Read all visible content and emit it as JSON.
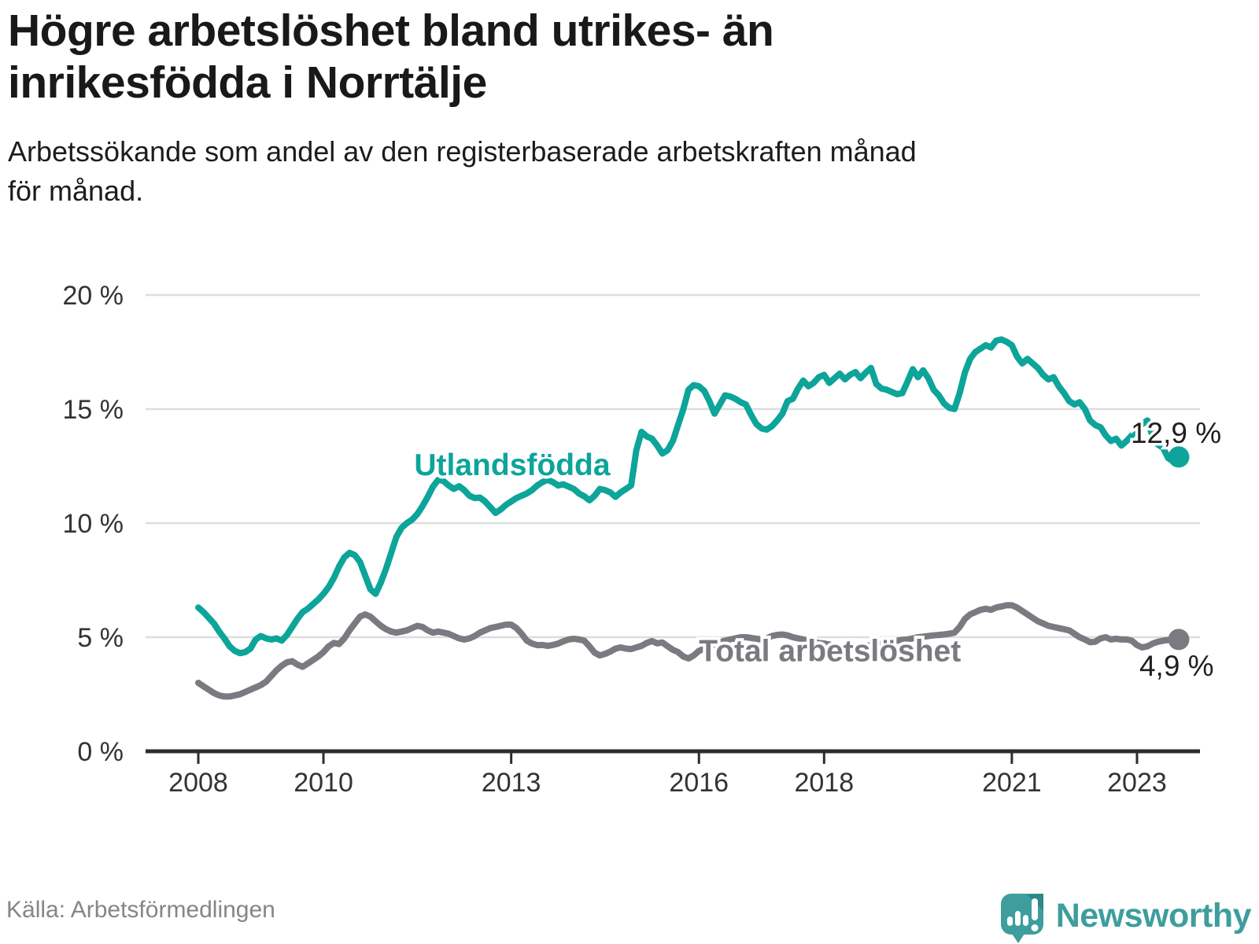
{
  "header": {
    "title_line1": "Högre arbetslöshet bland utrikes- än",
    "title_line2": "inrikesfödda i Norrtälje",
    "subtitle_line1": "Arbetssökande som andel av den registerbaserade arbetskraften månad",
    "subtitle_line2": "för månad."
  },
  "footer": {
    "source": "Källa: Arbetsförmedlingen",
    "brand": "Newsworthy"
  },
  "colors": {
    "foreign_born": "#0da49a",
    "total": "#7a7a80",
    "grid": "#dedede",
    "axis": "#2d2d2d",
    "tick_text": "#333333",
    "end_label_text": "#1f1f1f",
    "brand_teal": "#3e9d9d"
  },
  "chart_data": {
    "type": "line",
    "title": "Högre arbetslöshet bland utrikes- än inrikesfödda i Norrtälje",
    "subtitle": "Arbetssökande som andel av den registerbaserade arbetskraften månad för månad.",
    "x_unit": "year-month",
    "x_start_year": 2008,
    "x_months_per_step": 1,
    "xlim": [
      2007.15,
      2024.0
    ],
    "ylim": [
      0,
      20
    ],
    "grid": true,
    "legend_position": "inline-annotations",
    "x_ticks": [
      2008,
      2010,
      2013,
      2016,
      2018,
      2021,
      2023
    ],
    "x_tick_labels": [
      "2008",
      "2010",
      "2013",
      "2016",
      "2018",
      "2021",
      "2023"
    ],
    "y_ticks": [
      0,
      5,
      10,
      15,
      20
    ],
    "y_tick_labels": [
      "0 %",
      "5 %",
      "10 %",
      "15 %",
      "20 %"
    ],
    "series": [
      {
        "name": "Total arbetslöshet",
        "color": "#7a7a80",
        "end_label": "4,9 %",
        "end_value": 4.9,
        "values": [
          3.0,
          2.85,
          2.7,
          2.55,
          2.45,
          2.4,
          2.4,
          2.45,
          2.5,
          2.6,
          2.7,
          2.8,
          2.9,
          3.05,
          3.3,
          3.55,
          3.75,
          3.9,
          3.95,
          3.8,
          3.7,
          3.85,
          4.0,
          4.15,
          4.35,
          4.6,
          4.75,
          4.7,
          4.95,
          5.3,
          5.6,
          5.9,
          6.0,
          5.9,
          5.7,
          5.5,
          5.35,
          5.25,
          5.2,
          5.25,
          5.3,
          5.4,
          5.5,
          5.45,
          5.3,
          5.2,
          5.25,
          5.2,
          5.15,
          5.05,
          4.95,
          4.9,
          4.95,
          5.05,
          5.2,
          5.3,
          5.4,
          5.45,
          5.5,
          5.55,
          5.55,
          5.4,
          5.15,
          4.85,
          4.72,
          4.65,
          4.66,
          4.62,
          4.66,
          4.72,
          4.82,
          4.9,
          4.93,
          4.9,
          4.85,
          4.6,
          4.32,
          4.2,
          4.27,
          4.37,
          4.5,
          4.55,
          4.5,
          4.48,
          4.55,
          4.62,
          4.75,
          4.83,
          4.73,
          4.77,
          4.6,
          4.45,
          4.35,
          4.15,
          4.07,
          4.2,
          4.4,
          4.5,
          4.6,
          4.7,
          4.78,
          4.85,
          4.9,
          4.95,
          5.0,
          5.0,
          4.97,
          4.93,
          4.9,
          4.95,
          5.05,
          5.1,
          5.12,
          5.08,
          5.0,
          4.95,
          4.9,
          4.85,
          4.8,
          4.75,
          4.72,
          4.68,
          4.62,
          4.58,
          4.55,
          4.55,
          4.58,
          4.6,
          4.62,
          4.65,
          4.68,
          4.7,
          4.75,
          4.8,
          4.85,
          4.88,
          4.9,
          4.95,
          5.0,
          5.02,
          5.05,
          5.08,
          5.1,
          5.12,
          5.15,
          5.2,
          5.45,
          5.8,
          6.0,
          6.1,
          6.2,
          6.25,
          6.2,
          6.3,
          6.35,
          6.4,
          6.4,
          6.3,
          6.15,
          6.0,
          5.85,
          5.7,
          5.6,
          5.5,
          5.45,
          5.4,
          5.35,
          5.3,
          5.15,
          5.0,
          4.9,
          4.78,
          4.8,
          4.95,
          5.0,
          4.9,
          4.93,
          4.9,
          4.9,
          4.85,
          4.65,
          4.55,
          4.6,
          4.72,
          4.8,
          4.85,
          4.88,
          4.9,
          4.9
        ]
      },
      {
        "name": "Utlandsfödda",
        "color": "#0da49a",
        "end_label": "12,9 %",
        "end_value": 12.9,
        "values": [
          6.3,
          6.1,
          5.85,
          5.6,
          5.25,
          4.95,
          4.6,
          4.4,
          4.3,
          4.35,
          4.5,
          4.9,
          5.05,
          4.95,
          4.9,
          4.95,
          4.85,
          5.1,
          5.45,
          5.8,
          6.1,
          6.25,
          6.45,
          6.65,
          6.9,
          7.2,
          7.6,
          8.1,
          8.5,
          8.7,
          8.6,
          8.3,
          7.7,
          7.1,
          6.9,
          7.4,
          8.0,
          8.7,
          9.4,
          9.8,
          10.0,
          10.15,
          10.4,
          10.75,
          11.15,
          11.6,
          11.9,
          11.85,
          11.65,
          11.5,
          11.62,
          11.45,
          11.2,
          11.1,
          11.12,
          10.95,
          10.7,
          10.45,
          10.6,
          10.8,
          10.95,
          11.1,
          11.2,
          11.3,
          11.45,
          11.65,
          11.8,
          11.9,
          11.8,
          11.65,
          11.7,
          11.6,
          11.5,
          11.3,
          11.18,
          11.0,
          11.2,
          11.5,
          11.45,
          11.35,
          11.15,
          11.35,
          11.5,
          11.65,
          13.2,
          14.0,
          13.8,
          13.7,
          13.4,
          13.05,
          13.2,
          13.6,
          14.3,
          15.0,
          15.85,
          16.05,
          16.0,
          15.8,
          15.35,
          14.8,
          15.2,
          15.6,
          15.55,
          15.45,
          15.3,
          15.2,
          14.75,
          14.35,
          14.15,
          14.1,
          14.25,
          14.5,
          14.8,
          15.35,
          15.45,
          15.9,
          16.25,
          16.0,
          16.15,
          16.4,
          16.5,
          16.15,
          16.35,
          16.55,
          16.3,
          16.5,
          16.62,
          16.35,
          16.6,
          16.8,
          16.1,
          15.9,
          15.85,
          15.75,
          15.65,
          15.7,
          16.2,
          16.75,
          16.4,
          16.7,
          16.35,
          15.85,
          15.6,
          15.25,
          15.05,
          15.0,
          15.7,
          16.6,
          17.2,
          17.5,
          17.65,
          17.8,
          17.7,
          18.0,
          18.05,
          17.95,
          17.8,
          17.3,
          17.0,
          17.2,
          17.0,
          16.8,
          16.5,
          16.3,
          16.4,
          16.0,
          15.7,
          15.35,
          15.2,
          15.3,
          15.0,
          14.5,
          14.3,
          14.2,
          13.85,
          13.6,
          13.7,
          13.4,
          13.6,
          13.85,
          14.1,
          14.35,
          14.5,
          13.8,
          13.45,
          13.3,
          12.85,
          12.7,
          12.9
        ]
      }
    ],
    "annotations": [
      {
        "text": "Utlandsfödda",
        "x": 2011.45,
        "y": 12.1,
        "color": "#0da49a"
      },
      {
        "text": "Total arbetslöshet",
        "x": 2016.0,
        "y": 3.95,
        "color": "#7a7a80"
      }
    ]
  }
}
